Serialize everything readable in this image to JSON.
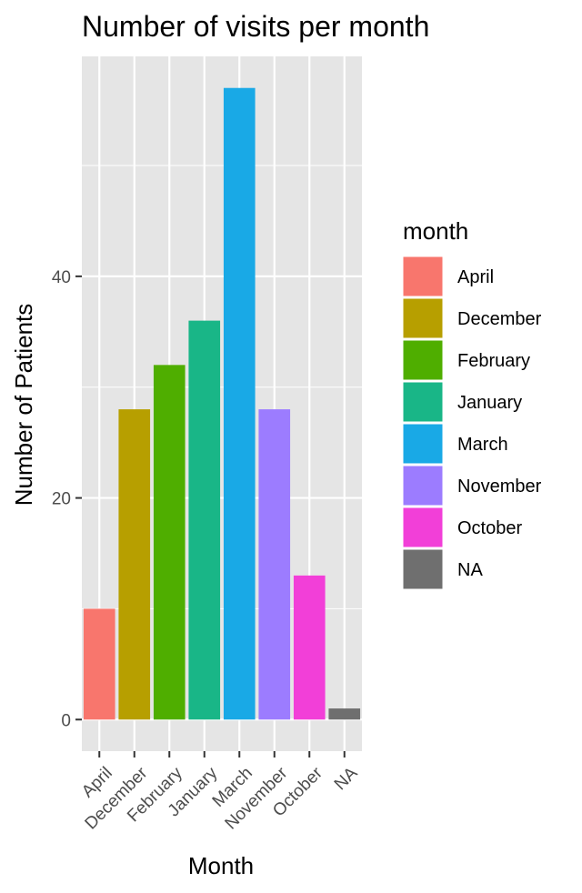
{
  "chart_data": {
    "type": "bar",
    "title": "Number of visits per month",
    "xlabel": "Month",
    "ylabel": "Number of Patients",
    "categories": [
      "April",
      "December",
      "February",
      "January",
      "March",
      "November",
      "October",
      "NA"
    ],
    "values": [
      10,
      28,
      32,
      36,
      57,
      28,
      13,
      1
    ],
    "colors": [
      "#F8766D",
      "#B79F00",
      "#4FAE00",
      "#19B687",
      "#19A9E6",
      "#9C7CFF",
      "#F23FD8",
      "#6F6F6F"
    ],
    "yticks": [
      0,
      20,
      40
    ],
    "ylim": [
      -2.85,
      59.85
    ],
    "grid": true,
    "panel_background": "#E5E5E5",
    "legend": {
      "title": "month",
      "position": "right",
      "entries": [
        "April",
        "December",
        "February",
        "January",
        "March",
        "November",
        "October",
        "NA"
      ]
    }
  }
}
